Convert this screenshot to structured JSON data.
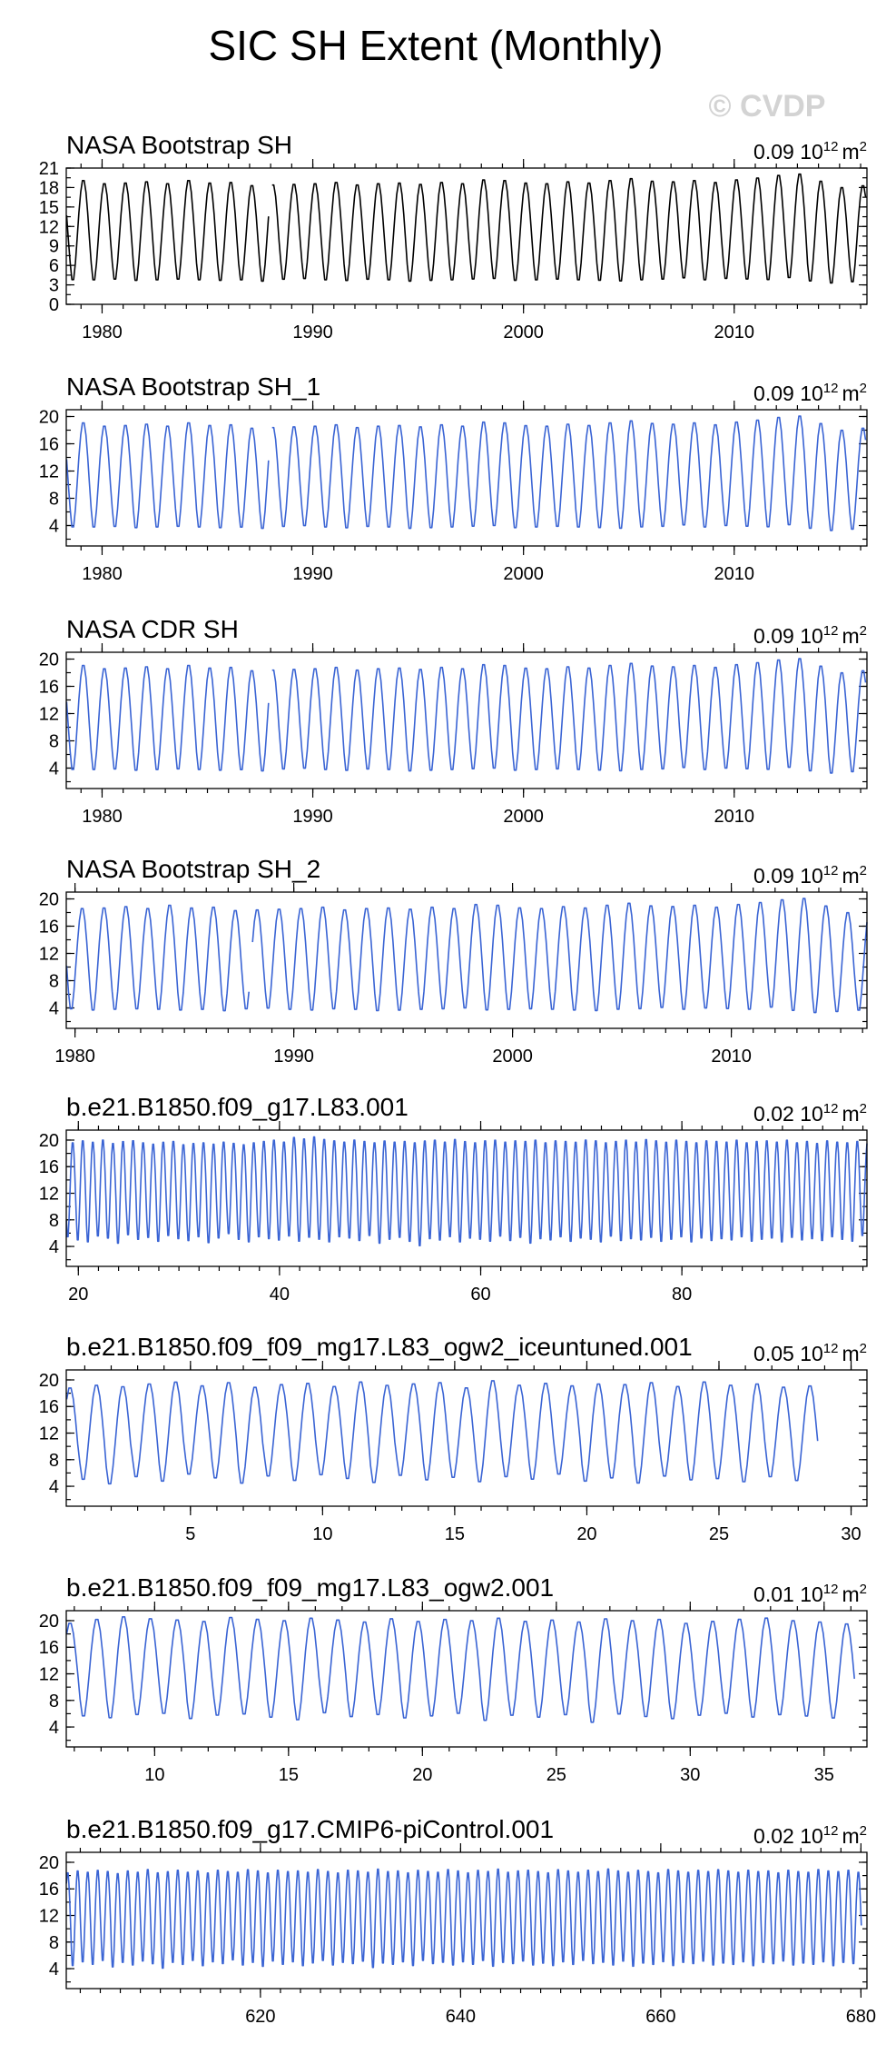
{
  "figure": {
    "title": "SIC SH Extent (Monthly)",
    "watermark": "© CVDP"
  },
  "chart_data": [
    {
      "type": "line",
      "title": "NASA Bootstrap SH",
      "annotation": "0.09 10",
      "annotation_exp": "12",
      "annotation_unit": "m",
      "annotation_unit_exp": "2",
      "color": "#000000",
      "xlim": [
        1978.3,
        2016.3
      ],
      "xticks": [
        1980,
        1990,
        2000,
        2010
      ],
      "ylim": [
        0,
        21
      ],
      "yticks": [
        0,
        3,
        6,
        9,
        12,
        15,
        18,
        21
      ],
      "gaps": [
        [
          1987.95,
          1988.05
        ]
      ],
      "start_month": 10,
      "seasonal_min": [
        3.4,
        3.3,
        3.3,
        3.4,
        3.2,
        3.3,
        3.4,
        3.3,
        3.2,
        3.3,
        3.1,
        3.4,
        3.5,
        3.3,
        3.2,
        3.4,
        3.3,
        3.1,
        3.2,
        3.3,
        3.4,
        3.5,
        3.2,
        3.3,
        3.4,
        3.3,
        3.2,
        3.1,
        3.3,
        3.4,
        3.6,
        3.3,
        3.5,
        3.4,
        3.3,
        3.6,
        3.1,
        2.8,
        3.0
      ],
      "seasonal_max": [
        18.7,
        19.3,
        18.8,
        18.9,
        19.1,
        18.8,
        19.3,
        18.9,
        19.0,
        18.5,
        18.6,
        18.7,
        18.8,
        19.0,
        18.6,
        18.8,
        18.9,
        18.7,
        19.0,
        18.8,
        19.4,
        19.3,
        18.9,
        18.8,
        19.1,
        18.9,
        19.3,
        19.6,
        19.2,
        19.1,
        19.3,
        19.0,
        19.4,
        19.7,
        20.1,
        20.3,
        19.2,
        18.2,
        18.5
      ]
    },
    {
      "type": "line",
      "title": "NASA Bootstrap SH_1",
      "annotation": "0.09 10",
      "annotation_exp": "12",
      "annotation_unit": "m",
      "annotation_unit_exp": "2",
      "color": "#3a64d4",
      "xlim": [
        1978.3,
        2016.3
      ],
      "xticks": [
        1980,
        1990,
        2000,
        2010
      ],
      "ylim": [
        1,
        21
      ],
      "yticks": [
        4,
        8,
        12,
        16,
        20
      ],
      "gaps": [
        [
          1987.95,
          1988.05
        ]
      ],
      "start_month": 10,
      "seasonal_min": [
        3.4,
        3.3,
        3.3,
        3.4,
        3.2,
        3.3,
        3.4,
        3.3,
        3.2,
        3.3,
        3.1,
        3.4,
        3.5,
        3.3,
        3.2,
        3.4,
        3.3,
        3.1,
        3.2,
        3.3,
        3.4,
        3.5,
        3.2,
        3.3,
        3.4,
        3.3,
        3.2,
        3.1,
        3.3,
        3.4,
        3.6,
        3.3,
        3.5,
        3.4,
        3.3,
        3.6,
        3.1,
        2.8,
        3.0
      ],
      "seasonal_max": [
        18.7,
        19.3,
        18.8,
        18.9,
        19.1,
        18.8,
        19.3,
        18.9,
        19.0,
        18.5,
        18.6,
        18.7,
        18.8,
        19.0,
        18.6,
        18.8,
        18.9,
        18.7,
        19.0,
        18.8,
        19.4,
        19.3,
        18.9,
        18.8,
        19.1,
        18.9,
        19.3,
        19.6,
        19.2,
        19.1,
        19.3,
        19.0,
        19.4,
        19.7,
        20.1,
        20.3,
        19.2,
        18.2,
        18.5
      ]
    },
    {
      "type": "line",
      "title": "NASA CDR SH",
      "annotation": "0.09 10",
      "annotation_exp": "12",
      "annotation_unit": "m",
      "annotation_unit_exp": "2",
      "color": "#3a64d4",
      "xlim": [
        1978.3,
        2016.3
      ],
      "xticks": [
        1980,
        1990,
        2000,
        2010
      ],
      "ylim": [
        1,
        21
      ],
      "yticks": [
        4,
        8,
        12,
        16,
        20
      ],
      "gaps": [
        [
          1987.95,
          1988.05
        ]
      ],
      "start_month": 10,
      "seasonal_min": [
        3.4,
        3.3,
        3.3,
        3.4,
        3.2,
        3.3,
        3.4,
        3.3,
        3.2,
        3.3,
        3.1,
        3.4,
        3.5,
        3.3,
        3.2,
        3.4,
        3.3,
        3.1,
        3.2,
        3.3,
        3.4,
        3.5,
        3.2,
        3.3,
        3.4,
        3.3,
        3.2,
        3.1,
        3.3,
        3.4,
        3.6,
        3.3,
        3.5,
        3.4,
        3.3,
        3.6,
        3.1,
        2.8,
        3.0
      ],
      "seasonal_max": [
        18.7,
        19.3,
        18.8,
        18.9,
        19.1,
        18.8,
        19.3,
        18.9,
        19.0,
        18.5,
        18.6,
        18.7,
        18.8,
        19.0,
        18.6,
        18.8,
        18.9,
        18.7,
        19.0,
        18.8,
        19.4,
        19.3,
        18.9,
        18.8,
        19.1,
        18.9,
        19.3,
        19.6,
        19.2,
        19.1,
        19.3,
        19.0,
        19.4,
        19.7,
        20.1,
        20.3,
        19.2,
        18.2,
        18.5
      ]
    },
    {
      "type": "line",
      "title": "NASA Bootstrap SH_2",
      "annotation": "0.09 10",
      "annotation_exp": "12",
      "annotation_unit": "m",
      "annotation_unit_exp": "2",
      "color": "#3a64d4",
      "xlim": [
        1979.6,
        2016.2
      ],
      "xticks": [
        1980,
        1990,
        2000,
        2010
      ],
      "ylim": [
        1,
        21
      ],
      "yticks": [
        4,
        8,
        12,
        16,
        20
      ],
      "gaps": [
        [
          1987.95,
          1988.05
        ]
      ],
      "start_month": 11,
      "seasonal_min": [
        3.3,
        3.4,
        3.2,
        3.3,
        3.4,
        3.3,
        3.2,
        3.3,
        3.1,
        3.4,
        3.5,
        3.3,
        3.2,
        3.4,
        3.3,
        3.1,
        3.2,
        3.3,
        3.4,
        3.5,
        3.2,
        3.3,
        3.4,
        3.3,
        3.2,
        3.1,
        3.3,
        3.4,
        3.6,
        3.3,
        3.5,
        3.4,
        3.3,
        3.6,
        3.1,
        2.8,
        3.0,
        3.2
      ],
      "seasonal_max": [
        19.3,
        18.8,
        18.9,
        19.1,
        18.8,
        19.3,
        18.9,
        19.0,
        18.5,
        18.6,
        18.7,
        18.8,
        19.0,
        18.6,
        18.8,
        18.9,
        18.7,
        19.0,
        18.8,
        19.4,
        19.3,
        18.9,
        18.8,
        19.1,
        18.9,
        19.3,
        19.6,
        19.2,
        19.1,
        19.3,
        19.0,
        19.4,
        19.7,
        20.1,
        20.3,
        19.2,
        18.2,
        18.5
      ]
    },
    {
      "type": "line",
      "title": "b.e21.B1850.f09_g17.L83.001",
      "annotation": "0.02 10",
      "annotation_exp": "12",
      "annotation_unit": "m",
      "annotation_unit_exp": "2",
      "color": "#3a64d4",
      "xlim": [
        18.8,
        98.4
      ],
      "xticks": [
        20,
        40,
        60,
        80
      ],
      "ylim": [
        1,
        21.5
      ],
      "yticks": [
        4,
        8,
        12,
        16,
        20
      ],
      "gaps": [],
      "start_month": 0,
      "seasonal_min": [
        5.0,
        4.5,
        4.2,
        5.1,
        4.8,
        4.0,
        5.3,
        4.6,
        4.9,
        4.3,
        5.2,
        4.7,
        4.4,
        5.0,
        4.1,
        4.8,
        5.5,
        4.6,
        4.2,
        5.0,
        4.7,
        4.5,
        5.1,
        4.3,
        4.9,
        4.6,
        4.2,
        5.0,
        4.8,
        4.4,
        5.2,
        4.0,
        4.6,
        4.9,
        4.3,
        3.6,
        4.7,
        4.5,
        5.0,
        4.2,
        4.8,
        4.6,
        4.3,
        5.1,
        4.4,
        4.9,
        4.0,
        4.7,
        4.5,
        5.0,
        4.3,
        4.8,
        4.6,
        4.2,
        5.1,
        4.4,
        4.7,
        4.5,
        4.9,
        4.3,
        4.6,
        5.0,
        4.2,
        4.8,
        4.4,
        4.7,
        4.5,
        5.0,
        4.3,
        4.6,
        4.8,
        4.2,
        4.9,
        4.5,
        4.7,
        4.4,
        5.0,
        4.6,
        4.3,
        5.2
      ],
      "seasonal_max": [
        19.8,
        20.1,
        19.9,
        20.2,
        19.7,
        20.0,
        20.1,
        19.8,
        19.6,
        19.9,
        20.0,
        19.5,
        19.7,
        19.8,
        19.6,
        19.9,
        19.7,
        19.5,
        19.8,
        20.0,
        20.2,
        19.9,
        20.6,
        20.4,
        20.7,
        20.3,
        20.1,
        19.9,
        20.2,
        20.0,
        19.8,
        20.1,
        19.9,
        20.0,
        19.8,
        20.1,
        20.2,
        19.9,
        20.3,
        20.0,
        19.8,
        20.1,
        20.2,
        19.9,
        20.1,
        20.0,
        20.2,
        19.8,
        20.1,
        20.0,
        19.9,
        20.2,
        20.1,
        19.8,
        20.0,
        20.2,
        19.9,
        20.3,
        20.1,
        19.9,
        20.2,
        20.0,
        19.8,
        20.1,
        20.0,
        19.9,
        20.2,
        19.8,
        20.0,
        20.1,
        19.9,
        20.2,
        19.8,
        20.0,
        19.7,
        20.1,
        19.9,
        19.8,
        20.0,
        19.7
      ]
    },
    {
      "type": "line",
      "title": "b.e21.B1850.f09_f09_mg17.L83_ogw2_iceuntuned.001",
      "annotation": "0.05 10",
      "annotation_exp": "12",
      "annotation_unit": "m",
      "annotation_unit_exp": "2",
      "color": "#3a64d4",
      "xlim": [
        0.3,
        30.6
      ],
      "xticks": [
        5,
        10,
        15,
        20,
        25,
        30
      ],
      "ylim": [
        1,
        21.5
      ],
      "yticks": [
        4,
        8,
        12,
        16,
        20
      ],
      "gaps": [],
      "start_month": 6,
      "seasonal_min": [
        3.8,
        4.6,
        3.9,
        5.0,
        4.3,
        5.4,
        4.8,
        4.0,
        5.1,
        4.4,
        5.3,
        4.7,
        4.1,
        5.2,
        4.5,
        4.9,
        4.2,
        5.0,
        4.6,
        5.4,
        4.3,
        4.8,
        4.0,
        5.1,
        4.5,
        4.7,
        4.2,
        5.0,
        4.4
      ],
      "seasonal_max": [
        19.0,
        19.4,
        19.2,
        19.6,
        19.9,
        19.3,
        19.8,
        19.1,
        19.5,
        19.7,
        19.2,
        19.9,
        19.4,
        19.6,
        19.8,
        19.0,
        20.1,
        19.4,
        19.7,
        19.3,
        19.6,
        19.5,
        19.8,
        19.2,
        19.9,
        19.4,
        19.6,
        19.1,
        19.3
      ]
    },
    {
      "type": "line",
      "title": "b.e21.B1850.f09_f09_mg17.L83_ogw2.001",
      "annotation": "0.01 10",
      "annotation_exp": "12",
      "annotation_unit": "m",
      "annotation_unit_exp": "2",
      "color": "#3a64d4",
      "xlim": [
        6.7,
        36.6
      ],
      "xticks": [
        10,
        15,
        20,
        25,
        30,
        35
      ],
      "ylim": [
        1,
        21.5
      ],
      "yticks": [
        4,
        8,
        12,
        16,
        20
      ],
      "gaps": [],
      "start_month": 6,
      "seasonal_min": [
        5.8,
        5.2,
        4.9,
        5.4,
        5.6,
        4.8,
        5.3,
        5.5,
        5.0,
        4.6,
        5.7,
        5.1,
        5.4,
        4.9,
        5.2,
        5.6,
        4.5,
        5.3,
        5.0,
        5.4,
        4.2,
        5.5,
        5.1,
        4.8,
        5.3,
        5.6,
        5.0,
        5.4,
        5.2,
        4.9
      ],
      "seasonal_max": [
        19.8,
        20.4,
        20.8,
        20.5,
        20.3,
        20.1,
        20.7,
        20.4,
        20.2,
        20.6,
        20.3,
        20.0,
        20.5,
        20.1,
        20.4,
        20.2,
        20.6,
        20.1,
        20.3,
        20.0,
        20.5,
        20.2,
        20.4,
        19.8,
        20.1,
        20.4,
        20.6,
        20.2,
        20.0,
        19.7
      ]
    },
    {
      "type": "line",
      "title": "b.e21.B1850.f09_g17.CMIP6-piControl.001",
      "annotation": "0.02 10",
      "annotation_exp": "12",
      "annotation_unit": "m",
      "annotation_unit_exp": "2",
      "color": "#3a64d4",
      "xlim": [
        600.6,
        680.6
      ],
      "xticks": [
        620,
        640,
        660,
        680
      ],
      "ylim": [
        1,
        21.5
      ],
      "yticks": [
        4,
        8,
        12,
        16,
        20
      ],
      "gaps": [],
      "start_month": 6,
      "seasonal_min": [
        4.4,
        4.0,
        4.6,
        4.2,
        4.8,
        3.8,
        4.5,
        4.1,
        4.7,
        4.3,
        3.6,
        4.5,
        4.2,
        4.8,
        4.0,
        4.6,
        4.3,
        4.9,
        4.1,
        4.5,
        3.9,
        4.7,
        4.2,
        4.6,
        4.0,
        4.4,
        4.8,
        4.1,
        4.5,
        4.3,
        4.7,
        3.7,
        4.4,
        4.2,
        4.6,
        4.0,
        4.8,
        4.3,
        4.5,
        4.1,
        4.6,
        4.2,
        4.8,
        3.9,
        4.5,
        4.3,
        4.7,
        4.1,
        4.4,
        4.0,
        4.6,
        4.2,
        4.8,
        4.3,
        4.5,
        4.1,
        4.7,
        3.9,
        4.4,
        4.2,
        4.6,
        4.0,
        4.5,
        4.3,
        4.7,
        4.1,
        4.4,
        4.2,
        4.6,
        4.0,
        4.5,
        4.3,
        4.7,
        4.1,
        4.4,
        4.2,
        4.6,
        4.0,
        4.5,
        4.3
      ],
      "seasonal_max": [
        18.6,
        18.9,
        18.7,
        19.0,
        18.8,
        18.5,
        18.9,
        18.7,
        19.1,
        18.6,
        18.8,
        19.0,
        18.7,
        18.9,
        18.6,
        19.0,
        18.8,
        18.7,
        19.1,
        18.9,
        18.6,
        19.0,
        18.8,
        18.9,
        18.7,
        19.1,
        18.8,
        18.6,
        19.0,
        18.9,
        18.7,
        19.2,
        18.8,
        18.9,
        18.6,
        19.0,
        18.8,
        18.7,
        19.1,
        18.9,
        18.6,
        19.0,
        18.8,
        19.2,
        18.7,
        18.9,
        19.0,
        18.8,
        18.6,
        19.1,
        18.9,
        18.7,
        19.0,
        18.8,
        19.2,
        18.9,
        18.7,
        19.0,
        18.8,
        18.6,
        19.1,
        18.9,
        18.7,
        19.0,
        18.8,
        19.1,
        18.9,
        18.7,
        19.0,
        18.8,
        18.9,
        18.6,
        19.0,
        18.8,
        18.7,
        19.1,
        18.9,
        18.8,
        19.0,
        18.7
      ]
    }
  ]
}
